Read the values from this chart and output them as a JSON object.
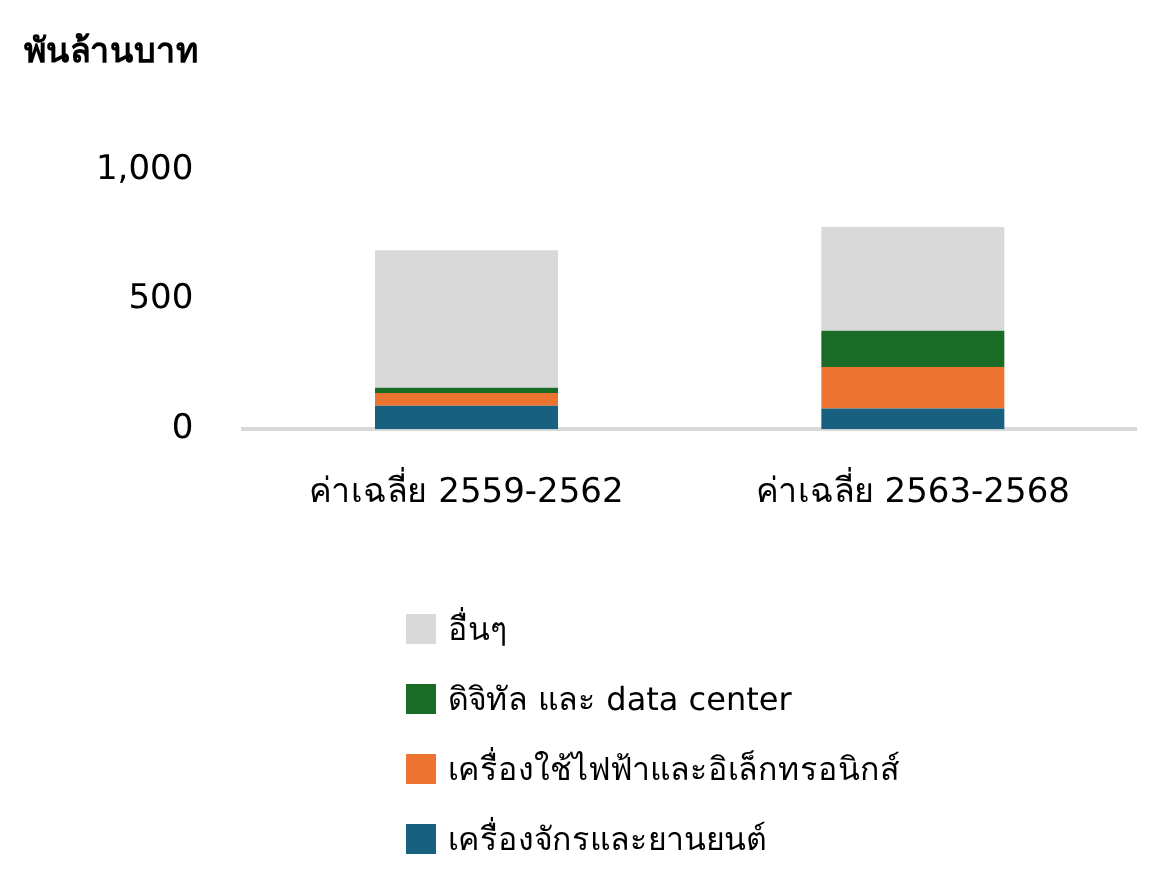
{
  "chart_data": {
    "type": "bar",
    "ylabel": "พันล้านบาท",
    "categories": [
      "ค่าเฉลี่ย 2559-2562",
      "ค่าเฉลี่ย 2563-2568"
    ],
    "series": [
      {
        "name": "เครื่องจักรและยานยนต์",
        "color": "#17607f",
        "values": [
          90,
          80
        ]
      },
      {
        "name": "เครื่องใช้ไฟฟ้าและอิเล็กทรอนิกส์",
        "color": "#ed7331",
        "values": [
          50,
          160
        ]
      },
      {
        "name": "ดิจิทัล และ data center",
        "color": "#1a6b26",
        "values": [
          20,
          140
        ]
      },
      {
        "name": "อื่นๆ",
        "color": "#d9d9d9",
        "values": [
          530,
          400
        ]
      }
    ],
    "stacked": true,
    "ylim": [
      0,
      1000
    ],
    "yticks": [
      0,
      500,
      {
        "value": 1000,
        "label": "1,000"
      }
    ],
    "legend": "bottom"
  }
}
